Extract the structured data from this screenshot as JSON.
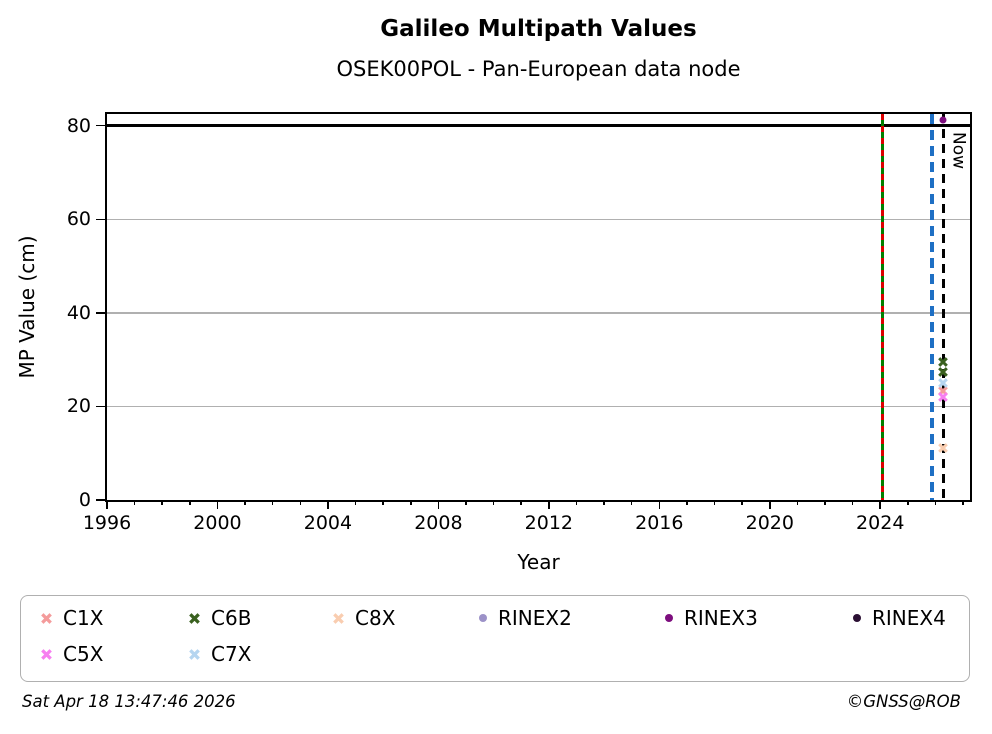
{
  "header": {
    "title": "Galileo Multipath Values",
    "subtitle": "OSEK00POL - Pan-European data node"
  },
  "footer": {
    "timestamp": "Sat Apr 18 13:47:46 2026",
    "copyright": "©GNSS@ROB"
  },
  "chart_data": {
    "type": "scatter",
    "title": "Galileo Multipath Values",
    "subtitle": "OSEK00POL - Pan-European data node",
    "xlabel": "Year",
    "ylabel": "MP Value (cm)",
    "xlim": [
      1996,
      2027.25
    ],
    "ylim": [
      0,
      82.5
    ],
    "xticks": [
      1996,
      2000,
      2004,
      2008,
      2012,
      2016,
      2020,
      2024
    ],
    "xtick_minor_step": 1,
    "yticks": [
      0,
      20,
      40,
      60,
      80
    ],
    "grid": {
      "y_values": [
        20,
        40,
        60
      ],
      "color": "#b0b0b0",
      "vertical": false
    },
    "hlines": [
      {
        "y": 80,
        "color": "#000000",
        "style": "solid",
        "width": 3
      }
    ],
    "vlines": [
      {
        "id": "green-solid",
        "x": 2024.09,
        "color": "#008000",
        "style": "solid",
        "width": 3
      },
      {
        "id": "red-dashed",
        "x": 2024.09,
        "color": "#dd0000",
        "style": "dashed",
        "width": 3,
        "dash": 6,
        "gap": 6
      },
      {
        "id": "blue-dashed",
        "x": 2025.87,
        "color": "#1e6fc4",
        "style": "dashed",
        "width": 3.5,
        "dash": 10,
        "gap": 6
      },
      {
        "id": "now",
        "x": 2026.29,
        "color": "#000000",
        "style": "dashed",
        "width": 2.5,
        "dash": 9,
        "gap": 6,
        "label": "Now"
      }
    ],
    "series": [
      {
        "name": "C1X",
        "marker": "x",
        "color": "#f49b9b",
        "points": [
          [
            2026.29,
            23.3
          ]
        ]
      },
      {
        "name": "C6B",
        "marker": "x",
        "color": "#3a611f",
        "points": [
          [
            2026.29,
            29.4
          ],
          [
            2026.29,
            27.3
          ]
        ]
      },
      {
        "name": "C8X",
        "marker": "x",
        "color": "#f9cdb0",
        "points": [
          [
            2026.28,
            11.2
          ]
        ]
      },
      {
        "name": "RINEX2",
        "marker": "circle",
        "color": "#9c92c8",
        "points": []
      },
      {
        "name": "RINEX3",
        "marker": "circle",
        "color": "#7d0e7e",
        "points": [
          [
            2026.29,
            81.3
          ]
        ]
      },
      {
        "name": "RINEX4",
        "marker": "circle",
        "color": "#2b0f33",
        "points": []
      },
      {
        "name": "C5X",
        "marker": "x",
        "color": "#f77ff0",
        "points": [
          [
            2026.29,
            22.0
          ]
        ]
      },
      {
        "name": "C7X",
        "marker": "x",
        "color": "#b5d5f0",
        "points": [
          [
            2026.29,
            24.9
          ]
        ]
      }
    ],
    "legend": {
      "position": "bottom",
      "rows": [
        [
          "C1X",
          "C6B",
          "C8X",
          "RINEX2",
          "RINEX3",
          "RINEX4"
        ],
        [
          "C5X",
          "C7X"
        ]
      ]
    }
  }
}
